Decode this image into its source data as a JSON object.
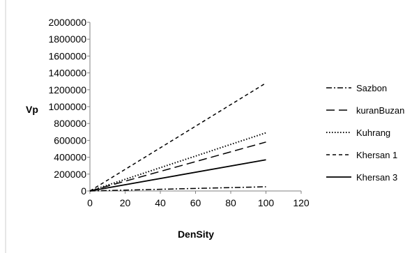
{
  "chart_data": {
    "type": "line",
    "xlabel": "DenSity",
    "ylabel": "Vp",
    "xlim": [
      0,
      120
    ],
    "ylim": [
      0,
      2000000
    ],
    "x_ticks": [
      "0",
      "20",
      "40",
      "60",
      "80",
      "100",
      "120"
    ],
    "y_ticks": [
      "0",
      "200000",
      "400000",
      "600000",
      "800000",
      "1000000",
      "1200000",
      "1400000",
      "1600000",
      "1800000",
      "2000000"
    ],
    "grid": false,
    "legend": "right",
    "series": [
      {
        "name": "Sazbon",
        "style": "dash-dot",
        "color": "#000000",
        "x": [
          0,
          100
        ],
        "y": [
          0,
          50000
        ]
      },
      {
        "name": "kuranBuzan",
        "style": "long-dash",
        "color": "#000000",
        "x": [
          0,
          100
        ],
        "y": [
          0,
          580000
        ]
      },
      {
        "name": "Kuhrang",
        "style": "dotted",
        "color": "#000000",
        "x": [
          0,
          100
        ],
        "y": [
          0,
          690000
        ]
      },
      {
        "name": "Khersan 1",
        "style": "dashed",
        "color": "#000000",
        "x": [
          0,
          100
        ],
        "y": [
          0,
          1280000
        ]
      },
      {
        "name": "Khersan 3",
        "style": "solid",
        "color": "#000000",
        "x": [
          0,
          100
        ],
        "y": [
          0,
          370000
        ]
      }
    ]
  }
}
